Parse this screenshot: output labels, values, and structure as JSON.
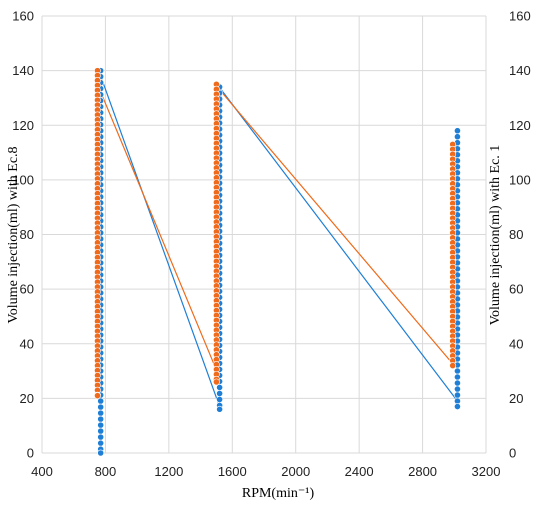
{
  "chart_data": {
    "type": "scatter",
    "xlabel": "RPM(min⁻¹)",
    "ylabel_left": "Volume injection(ml) with Ec.8",
    "ylabel_right": "Volume injection(ml) with Ec. 1",
    "xlim": [
      400,
      3200
    ],
    "ylim": [
      0,
      160
    ],
    "x_ticks": [
      400,
      800,
      1200,
      1600,
      2000,
      2400,
      2800,
      3200
    ],
    "y_ticks": [
      0,
      20,
      40,
      60,
      80,
      100,
      120,
      140,
      160
    ],
    "grid": true,
    "legend": "none",
    "series": [
      {
        "color": "#1f7fd6",
        "axis": "right",
        "groups": [
          {
            "x": 770,
            "y_min": 0,
            "y_max": 140
          },
          {
            "x": 1520,
            "y_min": 16,
            "y_max": 134
          },
          {
            "x": 3020,
            "y_min": 17,
            "y_max": 118
          }
        ],
        "connect": [
          [
            770,
            138
          ],
          [
            1520,
            17
          ],
          [
            1530,
            133
          ],
          [
            3020,
            19
          ]
        ]
      },
      {
        "color": "#ef6a1a",
        "axis": "left",
        "groups": [
          {
            "x": 750,
            "y_min": 21,
            "y_max": 140
          },
          {
            "x": 1500,
            "y_min": 26,
            "y_max": 135
          },
          {
            "x": 2990,
            "y_min": 32,
            "y_max": 113
          }
        ],
        "connect": [
          [
            750,
            135
          ],
          [
            1510,
            29
          ],
          [
            1520,
            133
          ],
          [
            3000,
            32
          ]
        ]
      }
    ]
  }
}
